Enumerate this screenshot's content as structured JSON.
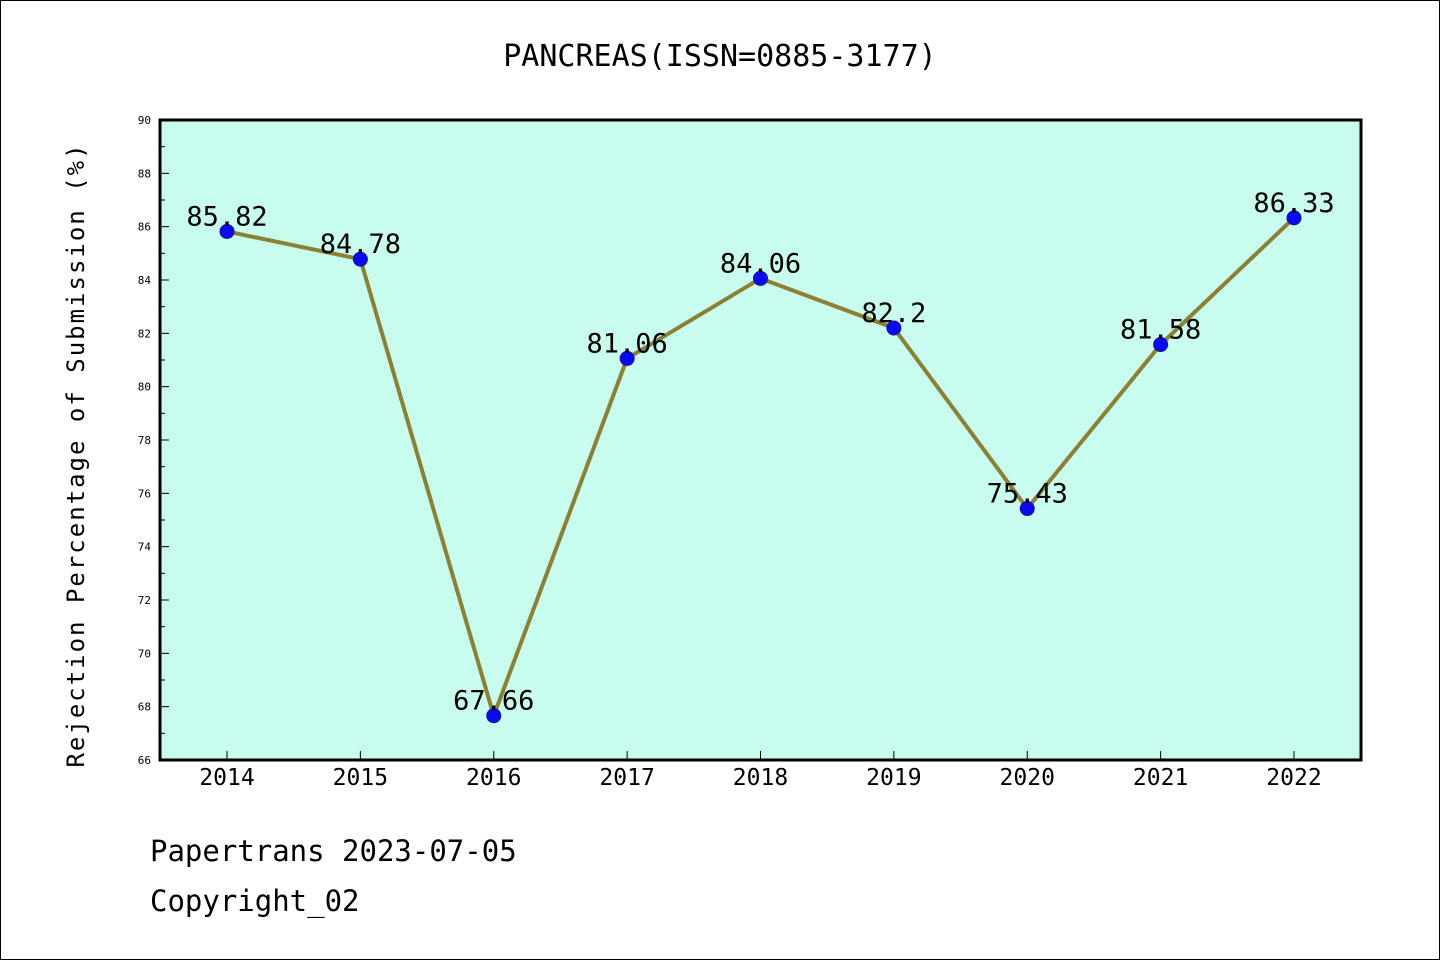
{
  "chart_data": {
    "type": "line",
    "title": "PANCREAS(ISSN=0885-3177)",
    "xlabel": "",
    "ylabel": "Rejection Percentage of Submission (%)",
    "categories": [
      "2014",
      "2015",
      "2016",
      "2017",
      "2018",
      "2019",
      "2020",
      "2021",
      "2022"
    ],
    "values": [
      85.82,
      84.78,
      67.66,
      81.06,
      84.06,
      82.2,
      75.43,
      81.58,
      86.33
    ],
    "data_labels": [
      "85.82",
      "84.78",
      "67.66",
      "81.06",
      "84.06",
      "82.2",
      "75.43",
      "81.58",
      "86.33"
    ],
    "ylim": [
      66,
      90
    ],
    "yticks": [
      "66",
      "68",
      "70",
      "72",
      "74",
      "76",
      "78",
      "80",
      "82",
      "84",
      "86",
      "88",
      "90"
    ],
    "grid": false,
    "colors": {
      "plot_background": "#c8fcee",
      "line": "#8c8033",
      "marker": "#0a0af0",
      "marker_edge": "#1010a0"
    }
  },
  "footer": {
    "line1": "Papertrans 2023-07-05",
    "line2": "Copyright_02"
  }
}
